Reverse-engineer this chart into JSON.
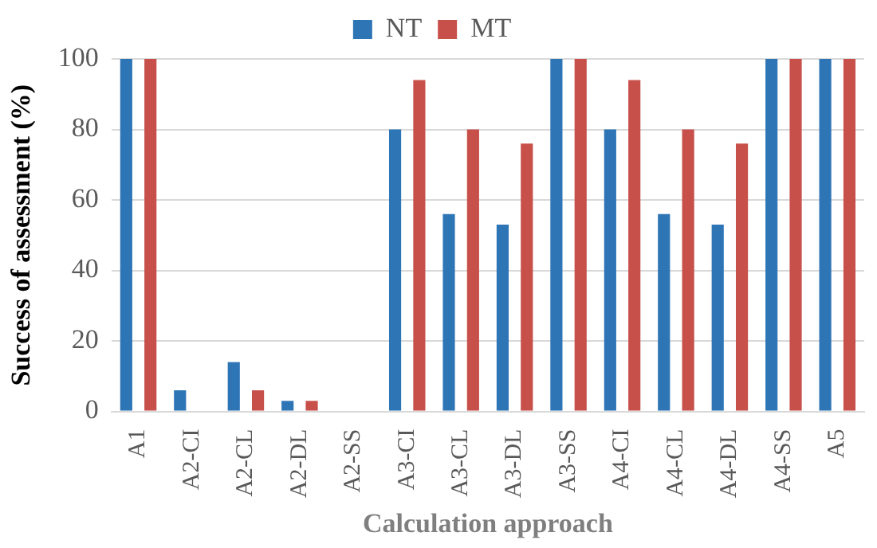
{
  "chart_data": {
    "type": "bar",
    "xlabel": "Calculation approach",
    "ylabel": "Success of assessment (%)",
    "categories": [
      "A1",
      "A2-CI",
      "A2-CL",
      "A2-DL",
      "A2-SS",
      "A3-CI",
      "A3-CL",
      "A3-DL",
      "A3-SS",
      "A4-CI",
      "A4-CL",
      "A4-DL",
      "A4-SS",
      "A5"
    ],
    "series": [
      {
        "name": "NT",
        "color": "#2e75b6",
        "values": [
          100,
          6,
          14,
          3,
          0,
          80,
          56,
          53,
          100,
          80,
          56,
          53,
          100,
          100
        ]
      },
      {
        "name": "MT",
        "color": "#c8504a",
        "values": [
          100,
          0,
          6,
          3,
          0,
          94,
          80,
          76,
          100,
          94,
          80,
          76,
          100,
          100
        ]
      }
    ],
    "ylim": [
      0,
      100
    ],
    "yticks": [
      0,
      20,
      40,
      60,
      80,
      100
    ],
    "grid": "y",
    "legend": "top"
  }
}
